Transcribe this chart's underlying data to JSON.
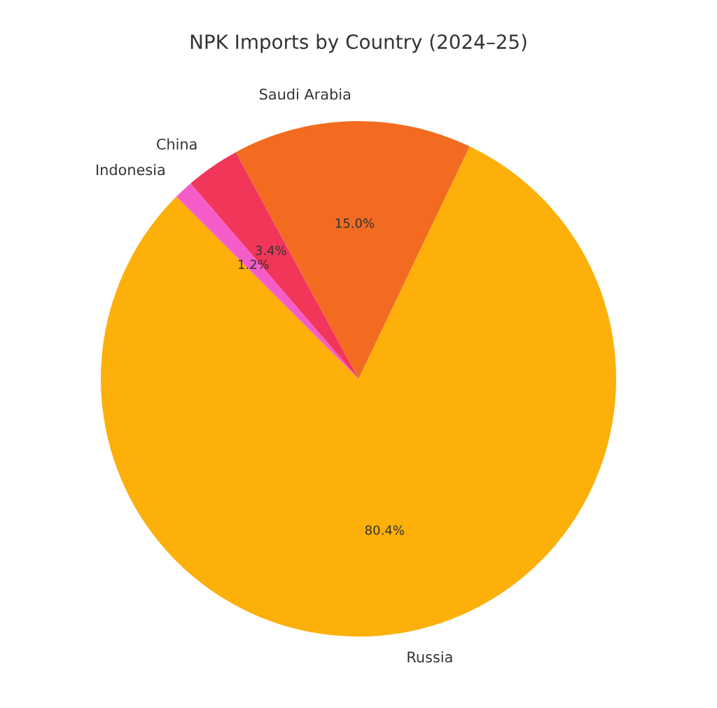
{
  "chart_data": {
    "type": "pie",
    "title": "NPK Imports by Country (2024–25)",
    "categories": [
      "Russia",
      "Saudi Arabia",
      "China",
      "Indonesia"
    ],
    "values": [
      80.4,
      15.0,
      3.4,
      1.2
    ],
    "value_labels": [
      "80.4%",
      "15.0%",
      "3.4%",
      "1.2%"
    ],
    "colors": [
      "#fdb00a",
      "#f26b21",
      "#f2365a",
      "#f45cc8"
    ]
  }
}
